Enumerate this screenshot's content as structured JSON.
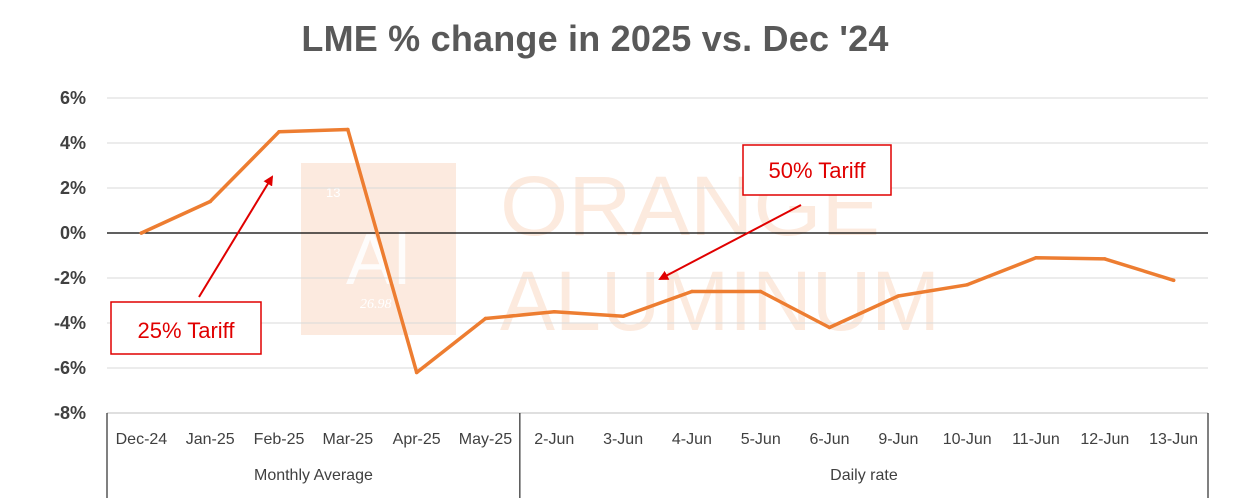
{
  "chart_data": {
    "type": "line",
    "title": "LME % change in 2025 vs. Dec '24",
    "categories": [
      "Dec-24",
      "Jan-25",
      "Feb-25",
      "Mar-25",
      "Apr-25",
      "May-25",
      "2-Jun",
      "3-Jun",
      "4-Jun",
      "5-Jun",
      "6-Jun",
      "9-Jun",
      "10-Jun",
      "11-Jun",
      "12-Jun",
      "13-Jun"
    ],
    "category_groups": [
      {
        "label": "Monthly Average",
        "count": 6
      },
      {
        "label": "Daily rate",
        "count": 10
      }
    ],
    "series": [
      {
        "values": [
          0.0,
          1.4,
          4.5,
          4.6,
          -6.2,
          -3.8,
          -3.5,
          -3.7,
          -2.6,
          -2.6,
          -4.2,
          -2.8,
          -2.3,
          -1.1,
          -1.15,
          -2.1
        ]
      }
    ],
    "y_ticks": [
      "6%",
      "4%",
      "2%",
      "0%",
      "-2%",
      "-4%",
      "-6%",
      "-8%"
    ],
    "ylim": [
      -8,
      6
    ],
    "ystep": 2,
    "grid": true,
    "line_color": "#ed7d31",
    "annotations": [
      {
        "text": "25% Tariff",
        "color": "#e00000"
      },
      {
        "text": "50% Tariff",
        "color": "#e00000"
      }
    ],
    "watermark": {
      "line1": "ORANGE",
      "line2": "ALUMINUM",
      "logo": "Al",
      "logo_number": "13",
      "logo_mass": "26.98",
      "color": "#fbe3d4"
    }
  }
}
